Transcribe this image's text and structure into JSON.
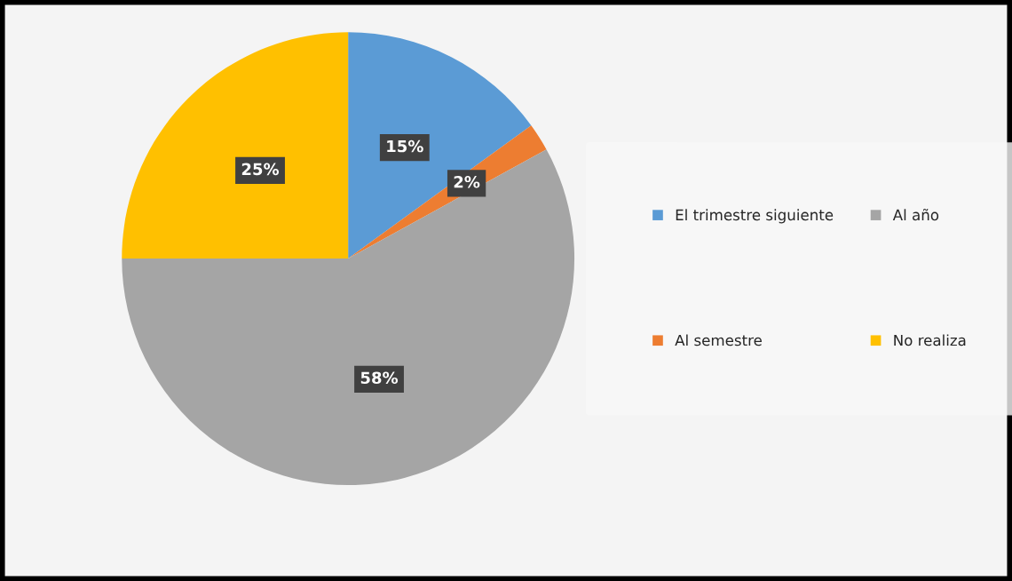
{
  "chart_data": {
    "type": "pie",
    "categories": [
      "El trimestre siguiente",
      "Al semestre",
      "Al año",
      "No realiza"
    ],
    "values": [
      15,
      2,
      58,
      25
    ],
    "colors": [
      "#5b9bd5",
      "#ed7d31",
      "#a5a5a5",
      "#ffc000"
    ],
    "value_labels": [
      "15%",
      "2%",
      "58%",
      "25%"
    ],
    "legend": "right"
  }
}
